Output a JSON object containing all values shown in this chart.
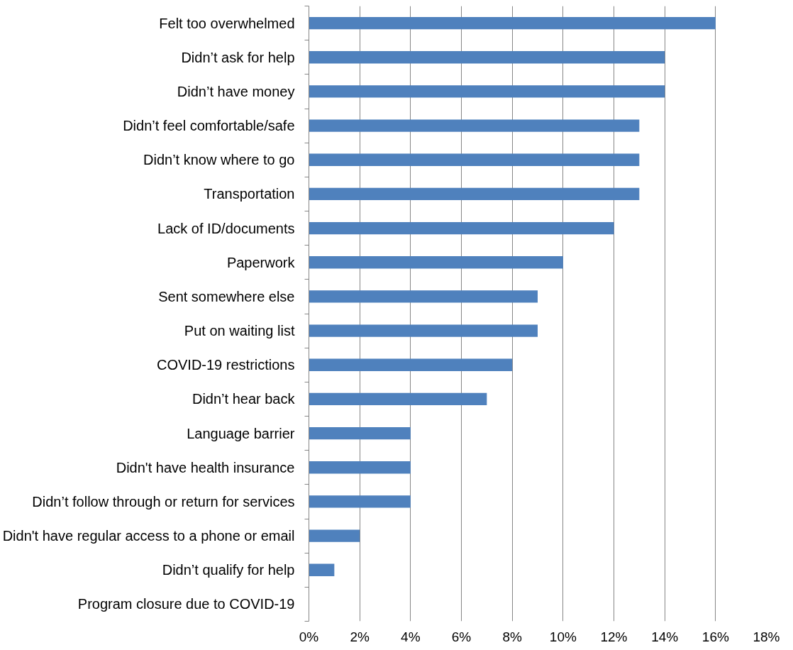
{
  "chart_data": {
    "type": "bar",
    "orientation": "horizontal",
    "categories": [
      "Felt too overwhelmed",
      "Didn’t ask for help",
      "Didn’t have money",
      "Didn’t feel comfortable/safe",
      "Didn’t know where to go",
      "Transportation",
      "Lack of ID/documents",
      "Paperwork",
      "Sent somewhere else",
      "Put on waiting list",
      "COVID-19 restrictions",
      "Didn’t hear back",
      "Language barrier",
      "Didn't have health insurance",
      "Didn’t follow through or return for services",
      "Didn't have regular access to a phone or email",
      "Didn’t qualify for help",
      "Program closure due to COVID-19"
    ],
    "values": [
      16,
      14,
      14,
      13,
      13,
      13,
      12,
      10,
      9,
      9,
      8,
      7,
      4,
      4,
      4,
      2,
      1,
      0
    ],
    "color": "#4f81bd",
    "xlim": [
      0,
      18
    ],
    "xticks": [
      {
        "value": 0,
        "label": "0%"
      },
      {
        "value": 2,
        "label": "2%"
      },
      {
        "value": 4,
        "label": "4%"
      },
      {
        "value": 6,
        "label": "6%"
      },
      {
        "value": 8,
        "label": "8%"
      },
      {
        "value": 10,
        "label": "10%"
      },
      {
        "value": 12,
        "label": "12%"
      },
      {
        "value": 14,
        "label": "14%"
      },
      {
        "value": 16,
        "label": "16%"
      },
      {
        "value": 18,
        "label": "18%"
      }
    ],
    "grid": "x"
  }
}
